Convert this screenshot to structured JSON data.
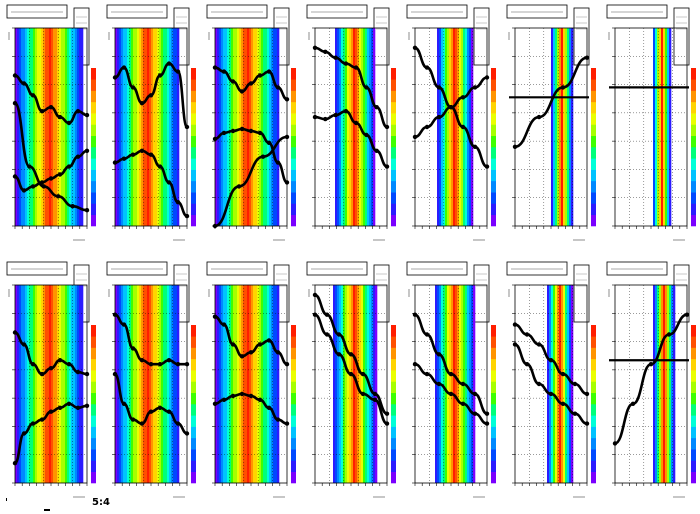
{
  "figure": {
    "footer_text": "5:4"
  },
  "palette": [
    "#7a00ff",
    "#2b1bff",
    "#0049ff",
    "#0089ff",
    "#00c3ff",
    "#00ffd8",
    "#00ff7a",
    "#3dff00",
    "#a6ff00",
    "#eaff00",
    "#ffd400",
    "#ff9400",
    "#ff5000",
    "#ff1e00"
  ],
  "chart_data": [
    {
      "type": "heatmap",
      "panel": "row1-col1",
      "row": 0,
      "col": 0,
      "band_center": 0.48,
      "band_width": 0.95,
      "series": [
        {
          "kind": "line",
          "y": [
            0.25,
            0.18,
            0.2,
            0.22,
            0.24,
            0.26,
            0.3,
            0.35,
            0.38
          ]
        },
        {
          "kind": "line",
          "y": [
            0.76,
            0.72,
            0.66,
            0.58,
            0.6,
            0.55,
            0.52,
            0.58,
            0.56
          ]
        },
        {
          "kind": "line",
          "y": [
            0.62,
            0.3,
            0.2,
            0.15,
            0.1,
            0.08
          ]
        }
      ]
    },
    {
      "type": "heatmap",
      "panel": "row1-col2",
      "row": 0,
      "col": 1,
      "band_center": 0.45,
      "band_width": 0.9,
      "series": [
        {
          "kind": "line",
          "y": [
            0.75,
            0.8,
            0.7,
            0.62,
            0.66,
            0.76,
            0.82,
            0.78,
            0.5
          ]
        },
        {
          "kind": "line",
          "y": [
            0.32,
            0.34,
            0.36,
            0.38,
            0.36,
            0.3,
            0.22,
            0.12,
            0.05
          ]
        }
      ]
    },
    {
      "type": "heatmap",
      "panel": "row1-col3",
      "row": 0,
      "col": 2,
      "band_center": 0.45,
      "band_width": 0.9,
      "series": [
        {
          "kind": "line",
          "y": [
            0.8,
            0.78,
            0.73,
            0.68,
            0.72,
            0.76,
            0.78,
            0.7,
            0.64
          ]
        },
        {
          "kind": "line",
          "y": [
            0.44,
            0.47,
            0.48,
            0.49,
            0.48,
            0.47,
            0.42,
            0.32,
            0.22
          ]
        },
        {
          "kind": "line",
          "y": [
            0.0,
            0.2,
            0.35,
            0.45
          ]
        }
      ]
    },
    {
      "type": "heatmap",
      "panel": "row1-col4",
      "row": 0,
      "col": 3,
      "band_center": 0.55,
      "band_width": 0.55,
      "series": [
        {
          "kind": "line",
          "y": [
            0.9,
            0.88,
            0.85,
            0.82,
            0.8,
            0.7,
            0.6,
            0.5
          ]
        },
        {
          "kind": "line",
          "y": [
            0.55,
            0.54,
            0.56,
            0.58,
            0.52,
            0.46,
            0.38,
            0.3
          ]
        }
      ]
    },
    {
      "type": "heatmap",
      "panel": "row1-col5",
      "row": 0,
      "col": 4,
      "band_center": 0.55,
      "band_width": 0.5,
      "series": [
        {
          "kind": "line",
          "y": [
            0.9,
            0.8,
            0.7,
            0.6,
            0.5,
            0.4,
            0.3
          ]
        },
        {
          "kind": "line",
          "y": [
            0.45,
            0.5,
            0.55,
            0.6,
            0.65,
            0.7,
            0.75
          ]
        }
      ]
    },
    {
      "type": "heatmap",
      "panel": "row1-col6",
      "row": 0,
      "col": 5,
      "band_center": 0.65,
      "band_width": 0.3,
      "series": [
        {
          "kind": "hline",
          "y": [
            0.65
          ]
        },
        {
          "kind": "line",
          "y": [
            0.4,
            0.55,
            0.7,
            0.85
          ]
        }
      ]
    },
    {
      "type": "heatmap",
      "panel": "row1-col7",
      "row": 0,
      "col": 6,
      "band_center": 0.65,
      "band_width": 0.25,
      "series": [
        {
          "kind": "hline",
          "y": [
            0.7
          ]
        }
      ]
    },
    {
      "type": "heatmap",
      "panel": "row2-col1",
      "row": 1,
      "col": 0,
      "band_center": 0.48,
      "band_width": 0.95,
      "series": [
        {
          "kind": "line",
          "y": [
            0.1,
            0.25,
            0.3,
            0.32,
            0.36,
            0.38,
            0.4,
            0.38,
            0.39
          ]
        },
        {
          "kind": "line",
          "y": [
            0.76,
            0.7,
            0.6,
            0.55,
            0.58,
            0.62,
            0.6,
            0.56,
            0.55
          ]
        }
      ]
    },
    {
      "type": "heatmap",
      "panel": "row2-col2",
      "row": 1,
      "col": 1,
      "band_center": 0.45,
      "band_width": 0.9,
      "series": [
        {
          "kind": "line",
          "y": [
            0.85,
            0.8,
            0.68,
            0.62,
            0.6,
            0.6,
            0.62,
            0.6,
            0.6
          ]
        },
        {
          "kind": "line",
          "y": [
            0.55,
            0.4,
            0.32,
            0.3,
            0.36,
            0.38,
            0.36,
            0.3,
            0.25
          ]
        }
      ]
    },
    {
      "type": "heatmap",
      "panel": "row2-col3",
      "row": 1,
      "col": 2,
      "band_center": 0.45,
      "band_width": 0.9,
      "series": [
        {
          "kind": "line",
          "y": [
            0.84,
            0.8,
            0.7,
            0.64,
            0.66,
            0.7,
            0.72,
            0.66,
            0.6
          ]
        },
        {
          "kind": "line",
          "y": [
            0.4,
            0.42,
            0.44,
            0.45,
            0.44,
            0.42,
            0.38,
            0.32,
            0.3
          ]
        }
      ]
    },
    {
      "type": "heatmap",
      "panel": "row2-col4",
      "row": 1,
      "col": 3,
      "band_center": 0.55,
      "band_width": 0.6,
      "series": [
        {
          "kind": "line",
          "y": [
            0.95,
            0.85,
            0.75,
            0.65,
            0.55,
            0.45,
            0.35
          ]
        },
        {
          "kind": "line",
          "y": [
            0.85,
            0.75,
            0.65,
            0.55,
            0.45,
            0.42,
            0.3
          ]
        }
      ]
    },
    {
      "type": "heatmap",
      "panel": "row2-col5",
      "row": 1,
      "col": 4,
      "band_center": 0.55,
      "band_width": 0.55,
      "series": [
        {
          "kind": "line",
          "y": [
            0.85,
            0.75,
            0.65,
            0.55,
            0.5,
            0.45,
            0.35
          ]
        },
        {
          "kind": "line",
          "y": [
            0.6,
            0.55,
            0.5,
            0.45,
            0.4,
            0.35,
            0.3
          ]
        }
      ]
    },
    {
      "type": "heatmap",
      "panel": "row2-col6",
      "row": 1,
      "col": 5,
      "band_center": 0.62,
      "band_width": 0.35,
      "series": [
        {
          "kind": "line",
          "y": [
            0.7,
            0.6,
            0.5,
            0.45,
            0.4,
            0.35,
            0.3
          ]
        },
        {
          "kind": "line",
          "y": [
            0.8,
            0.75,
            0.7,
            0.62,
            0.55,
            0.5,
            0.45
          ]
        }
      ]
    },
    {
      "type": "heatmap",
      "panel": "row2-col7",
      "row": 1,
      "col": 6,
      "band_center": 0.68,
      "band_width": 0.3,
      "series": [
        {
          "kind": "hline",
          "y": [
            0.62
          ]
        },
        {
          "kind": "line",
          "y": [
            0.2,
            0.4,
            0.6,
            0.75,
            0.85
          ]
        }
      ]
    }
  ]
}
